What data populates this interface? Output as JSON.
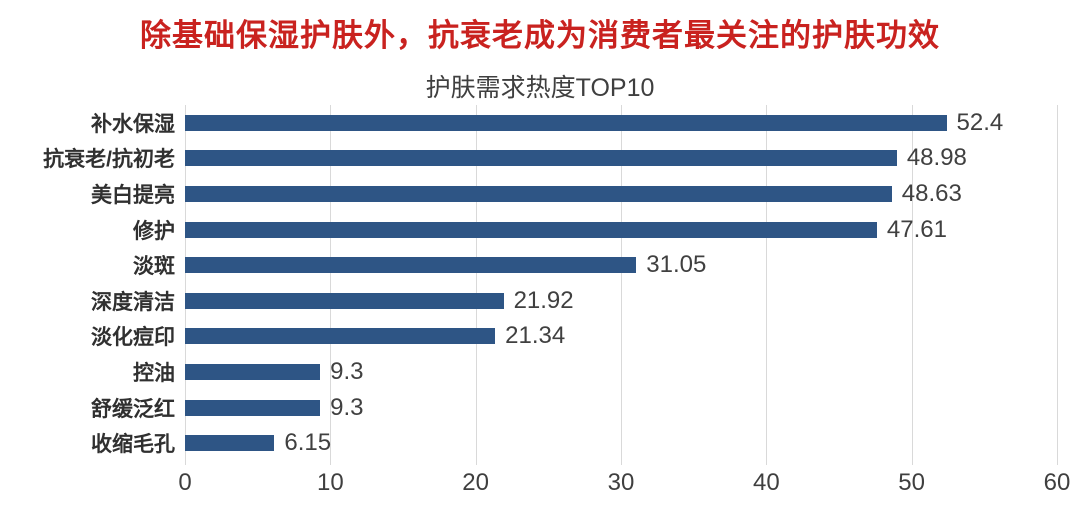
{
  "header": {
    "title": "除基础保湿护肤外，抗衰老成为消费者最关注的护肤功效",
    "title_color": "#c9221f"
  },
  "chart_data": {
    "type": "bar",
    "orientation": "horizontal",
    "title": "护肤需求热度TOP10",
    "categories": [
      "补水保湿",
      "抗衰老/抗初老",
      "美白提亮",
      "修护",
      "淡斑",
      "深度清洁",
      "淡化痘印",
      "控油",
      "舒缓泛红",
      "收缩毛孔"
    ],
    "values": [
      52.4,
      48.98,
      48.63,
      47.61,
      31.05,
      21.92,
      21.34,
      9.3,
      9.3,
      6.15
    ],
    "value_labels": [
      "52.4",
      "48.98",
      "48.63",
      "47.61",
      "31.05",
      "21.92",
      "21.34",
      "9.3",
      "9.3",
      "6.15"
    ],
    "xticks": [
      0,
      10,
      20,
      30,
      40,
      50,
      60
    ],
    "xlim": [
      0,
      60
    ],
    "xlabel": "",
    "ylabel": "",
    "grid": true,
    "legend": "none",
    "bar_color": "#2e5585",
    "gridline_color": "#d9d9d9",
    "label_color": "#404040"
  }
}
